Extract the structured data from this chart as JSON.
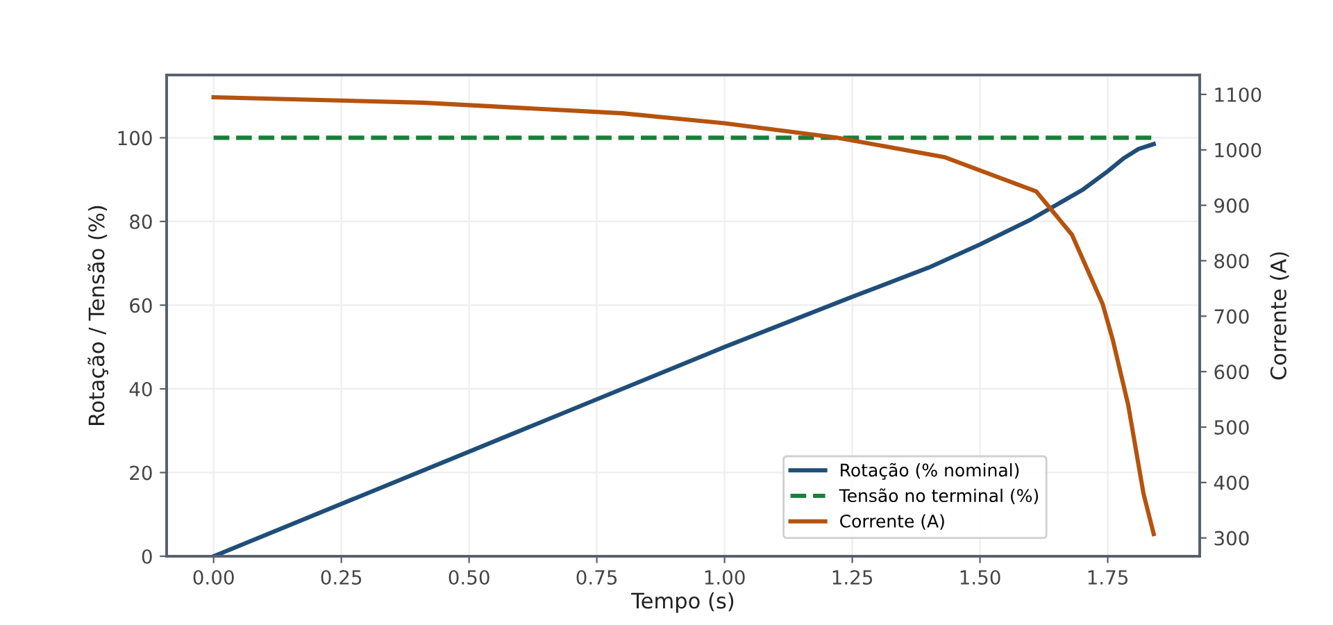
{
  "chart_data": {
    "type": "line",
    "xlabel": "Tempo (s)",
    "ylabel": "Rotação / Tensão (%)",
    "y2label": "Corrente (A)",
    "xlim": [
      -0.092,
      1.93
    ],
    "xticks": [
      {
        "value": 0,
        "label": "0.00"
      },
      {
        "value": 0.25,
        "label": "0.25"
      },
      {
        "value": 0.5,
        "label": "0.50"
      },
      {
        "value": 0.75,
        "label": "0.75"
      },
      {
        "value": 1,
        "label": "1.00"
      },
      {
        "value": 1.25,
        "label": "1.25"
      },
      {
        "value": 1.5,
        "label": "1.50"
      },
      {
        "value": 1.75,
        "label": "1.75"
      }
    ],
    "ylim": [
      0,
      115
    ],
    "yticks": [
      0,
      20,
      40,
      60,
      80,
      100
    ],
    "y2lim": [
      267,
      1135
    ],
    "y2ticks": [
      300,
      400,
      500,
      600,
      700,
      800,
      900,
      1000,
      1100
    ],
    "grid": true,
    "legend": "bottom right",
    "series": [
      {
        "name": "Rotação (% nominal)",
        "color": "#1f4e79",
        "line_style": "solid",
        "x": [
          0,
          0.25,
          0.5,
          0.75,
          1.0,
          1.25,
          1.4,
          1.5,
          1.6,
          1.7,
          1.75,
          1.78,
          1.81,
          1.84
        ],
        "values": [
          0,
          12.5,
          25,
          37.5,
          50,
          62,
          69,
          74.5,
          80.5,
          87.5,
          92,
          95,
          97.3,
          98.5
        ]
      },
      {
        "name": "Tensão no terminal (%)",
        "color": "#1a7f3a",
        "line_style": "dashed",
        "x": [
          0,
          1.84
        ],
        "values": [
          100,
          100
        ]
      },
      {
        "name": "Corrente (A)",
        "color": "#b5530f",
        "line_style": "solid",
        "axis": "y2",
        "x": [
          0,
          0.41,
          0.8,
          1.0,
          1.22,
          1.43,
          1.61,
          1.68,
          1.74,
          1.76,
          1.79,
          1.82,
          1.84
        ],
        "values": [
          1095,
          1085,
          1066,
          1048,
          1022,
          987,
          925,
          847,
          722,
          657,
          540,
          380,
          307
        ]
      }
    ]
  }
}
